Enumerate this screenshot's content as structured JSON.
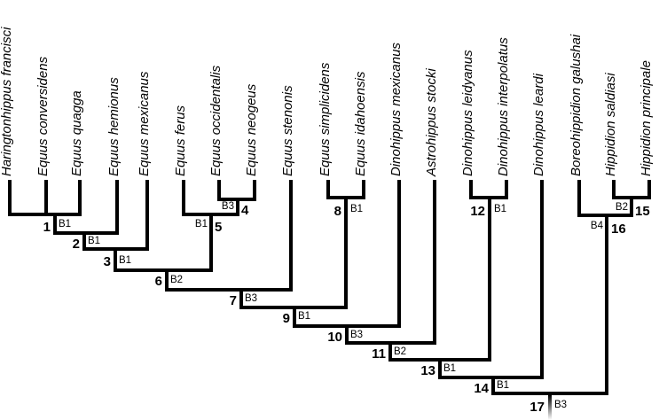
{
  "taxa": [
    "Haringtonhippus francisci",
    "Equus conversidens",
    "Equus quagga",
    "Equus hemionus",
    "Equus mexicanus",
    "Equus ferus",
    "Equus occidentalis",
    "Equus neogeus",
    "Equus stenonis",
    "Equus simplicidens",
    "Equus idahoensis",
    "Dinohippus mexicanus",
    "Astrohippus stocki",
    "Dinohippus leidyanus",
    "Dinohippus interpolatus",
    "Dinohippus leardi",
    "Boreohippidion galushai",
    "Hippidion saldiasi",
    "Hippidion principale"
  ],
  "nodes": [
    {
      "id": "1",
      "support": "B1"
    },
    {
      "id": "2",
      "support": "B1"
    },
    {
      "id": "3",
      "support": "B1"
    },
    {
      "id": "4",
      "support": "B3"
    },
    {
      "id": "5",
      "support": "B1"
    },
    {
      "id": "6",
      "support": "B2"
    },
    {
      "id": "7",
      "support": "B3"
    },
    {
      "id": "8",
      "support": "B1"
    },
    {
      "id": "9",
      "support": "B1"
    },
    {
      "id": "10",
      "support": "B3"
    },
    {
      "id": "11",
      "support": "B2"
    },
    {
      "id": "12",
      "support": "B1"
    },
    {
      "id": "13",
      "support": "B1"
    },
    {
      "id": "14",
      "support": "B1"
    },
    {
      "id": "15",
      "support": "B2"
    },
    {
      "id": "16",
      "support": "B4"
    },
    {
      "id": "17",
      "support": "B3"
    }
  ]
}
